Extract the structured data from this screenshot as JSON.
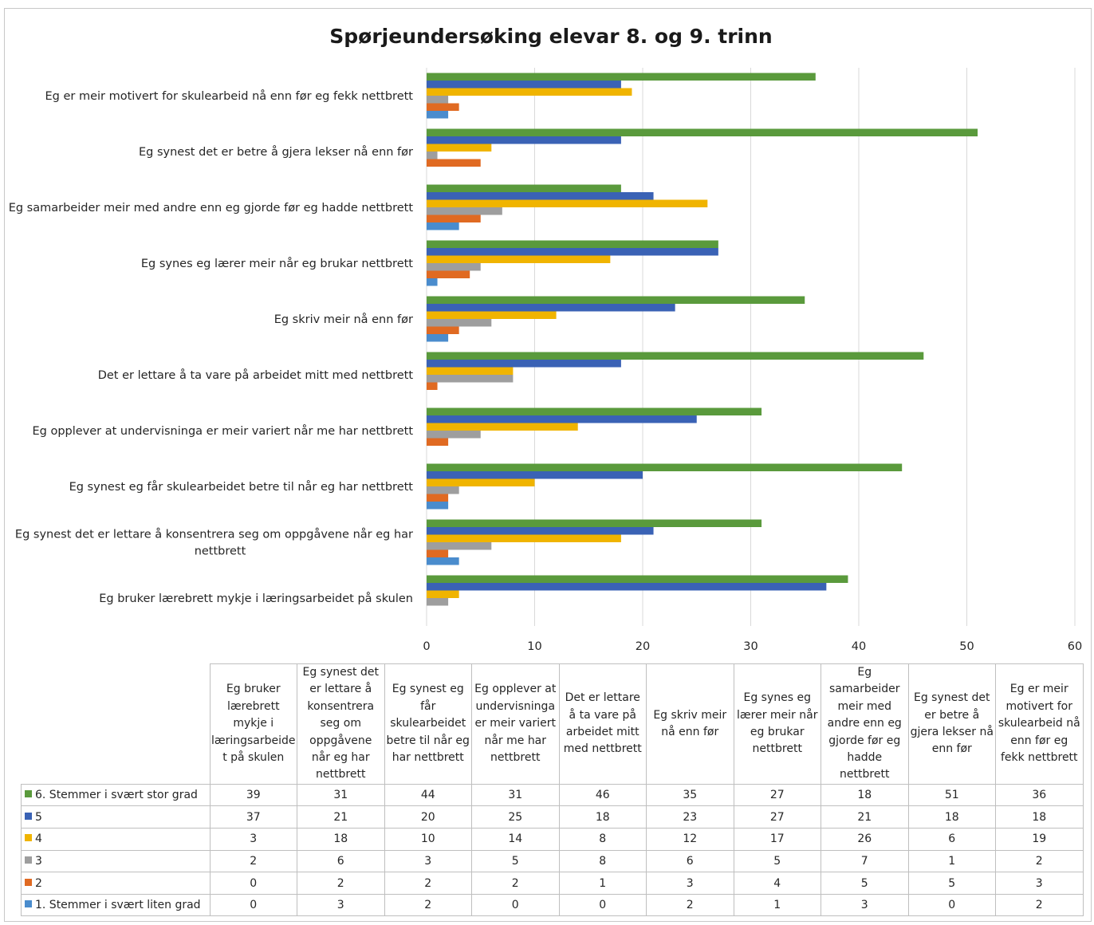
{
  "chart_data": {
    "type": "bar",
    "orientation": "horizontal",
    "title": "Spørjeundersøking elevar 8. og 9. trinn",
    "xlim": [
      0,
      60
    ],
    "xticks": [
      0,
      10,
      20,
      30,
      40,
      50,
      60
    ],
    "grid": true,
    "legend": "data-table",
    "categories": [
      "Eg bruker lærebrett mykje i læringsarbeidet på skulen",
      "Eg synest det er lettare å konsentrera seg om oppgåvene når eg har nettbrett",
      "Eg synest eg får skulearbeidet betre til når eg har nettbrett",
      "Eg opplever at undervisninga er meir variert når me har nettbrett",
      "Det er lettare å ta vare på arbeidet mitt med nettbrett",
      "Eg skriv meir nå enn før",
      "Eg synes eg lærer meir når eg brukar nettbrett",
      "Eg samarbeider meir med andre enn eg gjorde før eg hadde nettbrett",
      "Eg synest det er betre å gjera lekser nå enn før",
      "Eg er meir motivert for skulearbeid nå enn før eg fekk nettbrett"
    ],
    "axis_labels": [
      [
        "Eg bruker lærebrett mykje i læringsarbeidet på skulen"
      ],
      [
        "Eg synest det er lettare å konsentrera seg om oppgåvene når eg har",
        "nettbrett"
      ],
      [
        "Eg synest eg får skulearbeidet betre til når eg har nettbrett"
      ],
      [
        "Eg opplever at undervisninga er meir variert når me har nettbrett"
      ],
      [
        "Det er lettare å ta vare på arbeidet mitt med nettbrett"
      ],
      [
        "Eg skriv meir nå enn før"
      ],
      [
        "Eg synes eg lærer meir når eg brukar nettbrett"
      ],
      [
        "Eg samarbeider meir med andre enn eg gjorde før eg hadde nettbrett"
      ],
      [
        "Eg synest det er betre å gjera lekser nå enn før"
      ],
      [
        "Eg er meir motivert for skulearbeid nå enn før eg fekk nettbrett"
      ]
    ],
    "table_headers": [
      [
        "Eg bruker",
        "lærebrett",
        "mykje i",
        "læringsarbeide",
        "t på skulen"
      ],
      [
        "Eg synest det",
        "er lettare å",
        "konsentrera",
        "seg om",
        "oppgåvene",
        "når eg har",
        "nettbrett"
      ],
      [
        "Eg synest eg",
        "får",
        "skulearbeidet",
        "betre til når eg",
        "har nettbrett"
      ],
      [
        "Eg opplever at",
        "undervisninga",
        "er meir variert",
        "når me har",
        "nettbrett"
      ],
      [
        "Det er lettare",
        "å ta vare på",
        "arbeidet mitt",
        "med nettbrett"
      ],
      [
        "Eg skriv meir",
        "nå enn før"
      ],
      [
        "Eg synes eg",
        "lærer meir når",
        "eg brukar",
        "nettbrett"
      ],
      [
        "Eg",
        "samarbeider",
        "meir med",
        "andre enn eg",
        "gjorde før eg",
        "hadde",
        "nettbrett"
      ],
      [
        "Eg synest det",
        "er betre å",
        "gjera lekser nå",
        "enn før"
      ],
      [
        "Eg er meir",
        "motivert for",
        "skulearbeid nå",
        "enn før eg",
        "fekk nettbrett"
      ]
    ],
    "series": [
      {
        "name": "6. Stemmer i svært stor grad",
        "color": "#5a9a3c",
        "values": [
          39,
          31,
          44,
          31,
          46,
          35,
          27,
          18,
          51,
          36
        ]
      },
      {
        "name": "5",
        "color": "#3a62b5",
        "values": [
          37,
          21,
          20,
          25,
          18,
          23,
          27,
          21,
          18,
          18
        ]
      },
      {
        "name": "4",
        "color": "#f0b400",
        "values": [
          3,
          18,
          10,
          14,
          8,
          12,
          17,
          26,
          6,
          19
        ]
      },
      {
        "name": "3",
        "color": "#9e9e9e",
        "values": [
          2,
          6,
          3,
          5,
          8,
          6,
          5,
          7,
          1,
          2
        ]
      },
      {
        "name": "2",
        "color": "#e06a22",
        "values": [
          0,
          2,
          2,
          2,
          1,
          3,
          4,
          5,
          5,
          3
        ]
      },
      {
        "name": "1. Stemmer i svært liten grad",
        "color": "#4a8ccd",
        "values": [
          0,
          3,
          2,
          0,
          0,
          2,
          1,
          3,
          0,
          2
        ]
      }
    ]
  }
}
